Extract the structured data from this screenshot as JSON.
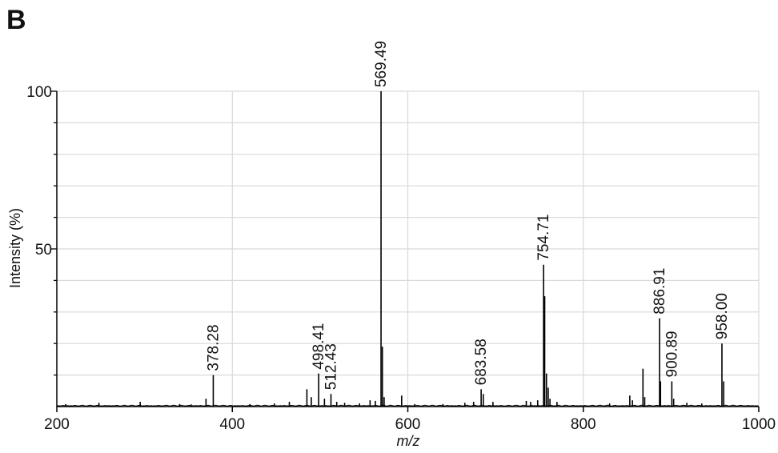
{
  "panel_label": "B",
  "chart_data": {
    "type": "line",
    "title": "",
    "xlabel": "m/z",
    "ylabel": "Intensity (%)",
    "xlim": [
      200,
      1000
    ],
    "ylim": [
      0,
      100
    ],
    "x_ticks": [
      200,
      400,
      600,
      800,
      1000
    ],
    "y_ticks_labeled": [
      50,
      100
    ],
    "grid": true,
    "grid_color": "#d9d9d9",
    "line_color": "#000000",
    "peaks": [
      {
        "mz": 210,
        "intensity": 0.8
      },
      {
        "mz": 248,
        "intensity": 1.2
      },
      {
        "mz": 295,
        "intensity": 1.5
      },
      {
        "mz": 340,
        "intensity": 0.8
      },
      {
        "mz": 353,
        "intensity": 0.7
      },
      {
        "mz": 370,
        "intensity": 2.5
      },
      {
        "mz": 378.28,
        "intensity": 10,
        "label": "378.28"
      },
      {
        "mz": 420,
        "intensity": 0.8
      },
      {
        "mz": 448,
        "intensity": 1.0
      },
      {
        "mz": 465,
        "intensity": 1.5
      },
      {
        "mz": 485,
        "intensity": 5.5
      },
      {
        "mz": 490,
        "intensity": 3.0
      },
      {
        "mz": 498.41,
        "intensity": 10.5,
        "label": "498.41"
      },
      {
        "mz": 505,
        "intensity": 2.5
      },
      {
        "mz": 512.43,
        "intensity": 4.0,
        "label": "512.43"
      },
      {
        "mz": 519,
        "intensity": 1.5
      },
      {
        "mz": 528,
        "intensity": 1.2
      },
      {
        "mz": 545,
        "intensity": 1.0
      },
      {
        "mz": 557,
        "intensity": 2.0
      },
      {
        "mz": 563,
        "intensity": 1.8
      },
      {
        "mz": 569.49,
        "intensity": 100,
        "label": "569.49"
      },
      {
        "mz": 571,
        "intensity": 19
      },
      {
        "mz": 573,
        "intensity": 3
      },
      {
        "mz": 593,
        "intensity": 3.5
      },
      {
        "mz": 608,
        "intensity": 0.8
      },
      {
        "mz": 640,
        "intensity": 0.8
      },
      {
        "mz": 665,
        "intensity": 1.2
      },
      {
        "mz": 675,
        "intensity": 1.5
      },
      {
        "mz": 683.58,
        "intensity": 5.5,
        "label": "683.58"
      },
      {
        "mz": 686,
        "intensity": 4.0
      },
      {
        "mz": 697,
        "intensity": 1.5
      },
      {
        "mz": 735,
        "intensity": 1.8
      },
      {
        "mz": 740,
        "intensity": 1.5
      },
      {
        "mz": 748,
        "intensity": 2.0
      },
      {
        "mz": 754.71,
        "intensity": 45,
        "label": "754.71"
      },
      {
        "mz": 756,
        "intensity": 35
      },
      {
        "mz": 758,
        "intensity": 10.5
      },
      {
        "mz": 760,
        "intensity": 6
      },
      {
        "mz": 762,
        "intensity": 2.5
      },
      {
        "mz": 770,
        "intensity": 1.5
      },
      {
        "mz": 830,
        "intensity": 1.0
      },
      {
        "mz": 853,
        "intensity": 3.5
      },
      {
        "mz": 856,
        "intensity": 2.0
      },
      {
        "mz": 868,
        "intensity": 12
      },
      {
        "mz": 870,
        "intensity": 3
      },
      {
        "mz": 886.91,
        "intensity": 28,
        "label": "886.91"
      },
      {
        "mz": 888,
        "intensity": 8
      },
      {
        "mz": 900.89,
        "intensity": 8,
        "label": "900.89"
      },
      {
        "mz": 903,
        "intensity": 2.5
      },
      {
        "mz": 918,
        "intensity": 1.2
      },
      {
        "mz": 935,
        "intensity": 1.0
      },
      {
        "mz": 958.0,
        "intensity": 20,
        "label": "958.00"
      },
      {
        "mz": 960,
        "intensity": 8
      }
    ]
  }
}
